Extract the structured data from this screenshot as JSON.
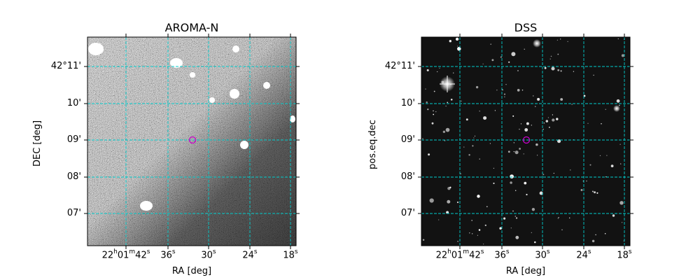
{
  "panels": [
    {
      "title": "AROMA-N",
      "xlabel": "RA [deg]",
      "ylabel": "DEC [deg]",
      "yticks": [
        "42°11'",
        "10'",
        "09'",
        "08'",
        "07'"
      ],
      "xticks": [
        {
          "h": "22",
          "m": "01",
          "s": "42"
        },
        {
          "s": "36"
        },
        {
          "s": "30"
        },
        {
          "s": "24"
        },
        {
          "s": "18"
        }
      ],
      "marker_color": "#cc00cc",
      "grid_color": "#00cccc"
    },
    {
      "title": "DSS",
      "xlabel": "RA [deg]",
      "ylabel": "pos.eq.dec",
      "yticks": [
        "42°11'",
        "10'",
        "09'",
        "08'",
        "07'"
      ],
      "xticks": [
        {
          "h": "22",
          "m": "01",
          "s": "42"
        },
        {
          "s": "36"
        },
        {
          "s": "30"
        },
        {
          "s": "24"
        },
        {
          "s": "18"
        }
      ],
      "marker_color": "#cc00cc",
      "grid_color": "#00cccc"
    }
  ]
}
